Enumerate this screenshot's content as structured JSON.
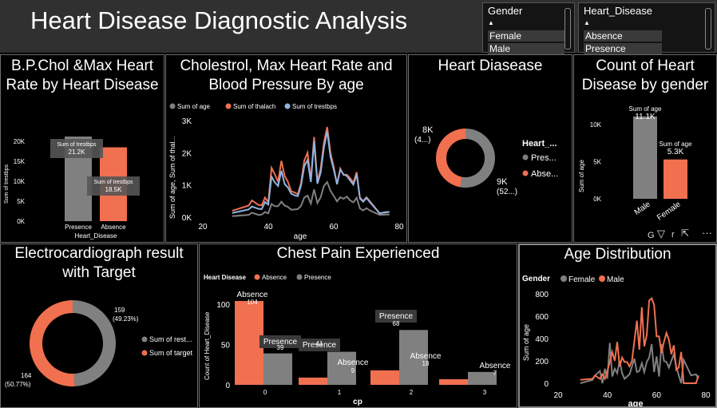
{
  "header": {
    "title": "Heart Disease Diagnostic Analysis"
  },
  "slicers": [
    {
      "title": "Gender",
      "items": [
        "Female",
        "Male"
      ]
    },
    {
      "title": "Heart_Disease",
      "items": [
        "Absence",
        "Presence"
      ]
    }
  ],
  "colors": {
    "gray": "#808080",
    "orange": "#f07050",
    "blue": "#8fb3e0",
    "bg": "#000000"
  },
  "charts": {
    "bp": {
      "title": "B.P.Chol &Max Heart Rate by Heart Disease",
      "chart_data": {
        "type": "bar",
        "categories": [
          "Presence",
          "Absence"
        ],
        "values": [
          21.2,
          18.5
        ],
        "ylabel": "Sum of trestbps",
        "xlabel": "Heart_Disease",
        "yticks": [
          "0K",
          "5K",
          "10K",
          "15K",
          "20K"
        ],
        "ylim": [
          0,
          20
        ],
        "value_labels": [
          "21.2K",
          "18.5K"
        ],
        "series_label": "Sum of trestbps"
      }
    },
    "age_line": {
      "title": "Cholestrol, Max Heart Rate and Blood Pressure By age",
      "chart_data": {
        "type": "line",
        "xlabel": "age",
        "ylabel": "Sum of age, Sum of thal...",
        "xticks": [
          "20",
          "40",
          "60",
          "80"
        ],
        "xlim": [
          20,
          80
        ],
        "yticks": [
          "0K",
          "1K",
          "2K",
          "3K"
        ],
        "ylim": [
          0,
          3
        ],
        "legend": [
          "Sum of age",
          "Sum of thalach",
          "Sum of trestbps"
        ],
        "x": [
          29,
          34,
          35,
          37,
          38,
          39,
          40,
          41,
          42,
          43,
          44,
          45,
          46,
          47,
          48,
          49,
          50,
          51,
          52,
          53,
          54,
          55,
          56,
          57,
          58,
          59,
          60,
          61,
          62,
          63,
          64,
          65,
          66,
          67,
          68,
          69,
          70,
          71,
          74,
          76,
          77
        ],
        "series": [
          {
            "name": "Sum of age",
            "values": [
              0.03,
              0.07,
              0.14,
              0.07,
              0.08,
              0.16,
              0.12,
              0.41,
              0.34,
              0.34,
              0.48,
              0.36,
              0.32,
              0.23,
              0.24,
              0.25,
              0.35,
              0.61,
              0.67,
              0.42,
              0.86,
              0.44,
              0.62,
              0.97,
              1.09,
              0.82,
              0.66,
              0.49,
              0.62,
              0.57,
              0.64,
              0.52,
              0.46,
              0.6,
              0.27,
              0.21,
              0.28,
              0.21,
              0.07,
              0.08,
              0.08
            ]
          },
          {
            "name": "Sum of thalach",
            "values": [
              0.2,
              0.36,
              0.52,
              0.38,
              0.37,
              0.61,
              0.46,
              1.53,
              1.33,
              1.1,
              1.75,
              1.28,
              1.1,
              0.8,
              0.77,
              0.71,
              1.05,
              1.76,
              2.0,
              1.14,
              2.49,
              1.1,
              1.5,
              2.32,
              2.8,
              2.0,
              1.56,
              1.02,
              1.51,
              1.31,
              1.32,
              1.21,
              1.07,
              1.4,
              0.61,
              0.5,
              0.62,
              0.5,
              0.12,
              0.16,
              0.16
            ]
          },
          {
            "name": "Sum of trestbps",
            "values": [
              0.13,
              0.24,
              0.33,
              0.26,
              0.25,
              0.47,
              0.39,
              1.26,
              1.08,
              0.97,
              1.44,
              1.03,
              0.92,
              0.73,
              0.68,
              0.65,
              0.98,
              1.58,
              1.78,
              1.09,
              2.36,
              1.04,
              1.38,
              2.16,
              2.67,
              1.87,
              1.48,
              1.03,
              1.47,
              1.33,
              1.28,
              1.14,
              1.01,
              1.33,
              0.58,
              0.48,
              0.6,
              0.47,
              0.12,
              0.15,
              0.16
            ]
          }
        ]
      }
    },
    "donut_hd": {
      "title": "Heart Diasease",
      "chart_data": {
        "type": "pie",
        "categories": [
          "Presence",
          "Absence"
        ],
        "values": [
          9,
          8
        ],
        "labels": [
          "9K",
          "8K"
        ],
        "sublabels": [
          "(52...)",
          "(4...)"
        ],
        "legend_title": "Heart_...",
        "legend": [
          "Pres...",
          "Abse..."
        ]
      }
    },
    "gender": {
      "title": "Count of Heart Disease by gender",
      "chart_data": {
        "type": "bar",
        "categories": [
          "Male",
          "Female"
        ],
        "values": [
          11.1,
          5.3
        ],
        "ylabel": "Sum of age",
        "yticks": [
          "0K",
          "5K",
          "10K"
        ],
        "ylim": [
          0,
          10
        ],
        "value_caption": "Sum of age",
        "value_labels": [
          "11.1K",
          "5.3K"
        ]
      },
      "toolbar_letters": "G",
      "toolbar_letter_r": "r"
    },
    "ecg": {
      "title": "Electrocardiograph result with Target",
      "chart_data": {
        "type": "pie",
        "categories": [
          "Sum of rest...",
          "Sum of target"
        ],
        "values": [
          159,
          164
        ],
        "labels": [
          "159",
          "164"
        ],
        "percents": [
          "(49.23%)",
          "(50.77%)"
        ],
        "legend": [
          "Sum of rest...",
          "Sum of target"
        ]
      }
    },
    "chest": {
      "title": "Chest Pain Experienced",
      "chart_data": {
        "type": "bar",
        "categories": [
          "0",
          "1",
          "2",
          "3"
        ],
        "legend_title": "Heart Disease",
        "series": [
          {
            "name": "Absence",
            "values": [
              104,
              9,
              18,
              7
            ]
          },
          {
            "name": "Presence",
            "values": [
              39,
              41,
              68,
              16
            ]
          }
        ],
        "xlabel": "cp",
        "ylabel": "Count of Heart_Disease",
        "yticks": [
          "0",
          "50",
          "100"
        ],
        "ylim": [
          0,
          100
        ],
        "bar_labels": [
          {
            "name": "Absence",
            "value": "104"
          },
          {
            "name": "Presence",
            "value": "39"
          },
          {
            "name": "Presence",
            "value": "41"
          },
          {
            "name": "Absence",
            "value": "9"
          },
          {
            "name": "Presence",
            "value": "68"
          },
          {
            "name": "Absence",
            "value": "18"
          },
          {
            "name": "Absence",
            "value": "7"
          }
        ]
      }
    },
    "agedist": {
      "title": "Age Distribution",
      "chart_data": {
        "type": "line",
        "legend_title": "Gender",
        "legend": [
          "Female",
          "Male"
        ],
        "xlabel": "age",
        "ylabel": "Sum of age",
        "xticks": [
          "20",
          "40",
          "60",
          "80"
        ],
        "xlim": [
          20,
          80
        ],
        "yticks": [
          "0",
          "200",
          "400",
          "600",
          "800"
        ],
        "ylim": [
          0,
          800
        ],
        "x": [
          29,
          34,
          35,
          37,
          38,
          39,
          40,
          41,
          42,
          43,
          44,
          45,
          46,
          47,
          48,
          49,
          50,
          51,
          52,
          53,
          54,
          55,
          56,
          57,
          58,
          59,
          60,
          61,
          62,
          63,
          64,
          65,
          66,
          67,
          68,
          69,
          70,
          71,
          74,
          76,
          77
        ],
        "series": [
          {
            "name": "Female",
            "values": [
              0,
              30,
              70,
              110,
              0,
              130,
              40,
              360,
              60,
              130,
              90,
              200,
              90,
              40,
              60,
              80,
              150,
              220,
              100,
              110,
              180,
              100,
              190,
              230,
              350,
              100,
              240,
              60,
              350,
              200,
              190,
              140,
              200,
              260,
              150,
              70,
              0,
              210,
              70,
              80,
              40
            ]
          },
          {
            "name": "Male",
            "values": [
              30,
              40,
              70,
              40,
              80,
              40,
              110,
              190,
              280,
              200,
              370,
              150,
              230,
              190,
              190,
              150,
              200,
              380,
              560,
              300,
              680,
              330,
              430,
              740,
              760,
              700,
              420,
              420,
              270,
              370,
              450,
              390,
              260,
              340,
              120,
              140,
              280,
              0,
              0,
              0,
              70
            ]
          }
        ]
      }
    }
  }
}
